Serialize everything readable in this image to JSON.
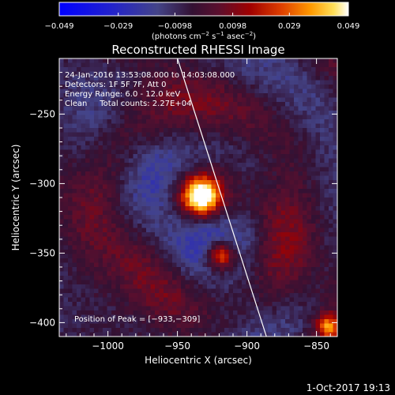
{
  "chart_data": {
    "type": "heatmap",
    "title": "Reconstructed RHESSI Image",
    "xlabel": "Heliocentric X (arcsec)",
    "ylabel": "Heliocentric Y (arcsec)",
    "xlim": [
      -1035,
      -835
    ],
    "ylim": [
      -410,
      -210
    ],
    "x_ticks": [
      -1000,
      -950,
      -900,
      -850
    ],
    "x_tick_labels": [
      "−1000",
      "−950",
      "−900",
      "−850"
    ],
    "y_ticks": [
      -250,
      -300,
      -350,
      -400
    ],
    "y_tick_labels": [
      "−250",
      "−300",
      "−350",
      "−400"
    ],
    "colorbar": {
      "range": [
        -0.049,
        0.049
      ],
      "ticks": [
        -0.049,
        -0.029,
        -0.0098,
        0.0098,
        0.029,
        0.049
      ],
      "tick_labels": [
        "−0.049",
        "−0.029",
        "−0.0098",
        "0.0098",
        "0.029",
        "0.049"
      ],
      "unit_parts": [
        "(photons cm",
        "−2",
        " s",
        "−1",
        " asec",
        "−2",
        ")"
      ]
    },
    "annotations": [
      "24-Jan-2016 13:53:08.000 to 14:03:08.000",
      "Detectors: 1F 5F 7F, Att 0",
      "Energy Range: 6.0 - 12.0 keV",
      "Clean     Total counts: 2.27E+04"
    ],
    "peak_text": "Position of Peak = [−933,−309]",
    "peak": [
      -933,
      -309
    ],
    "limb_line": [
      [
        -950,
        -210
      ],
      [
        -886,
        -410
      ]
    ],
    "sources": [
      {
        "x": -933,
        "y": -309,
        "flux": 0.049
      },
      {
        "x": -919,
        "y": -352,
        "flux": 0.034
      }
    ],
    "grid": false
  },
  "footer_timestamp": "1-Oct-2017 19:13",
  "colors": {
    "background": "#000000",
    "axis": "#ffffff",
    "limb_line": "#ffffff",
    "colormap": [
      "#0000ff",
      "#2222cc",
      "#444488",
      "#331133",
      "#5a0f2e",
      "#a00000",
      "#e04000",
      "#ff9a00",
      "#ffe05a",
      "#ffffff"
    ]
  }
}
